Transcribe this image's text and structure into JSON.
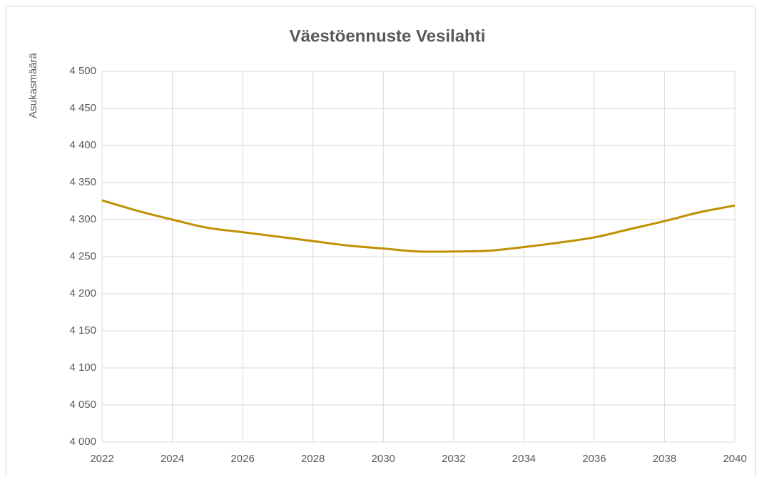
{
  "chart_data": {
    "type": "line",
    "title": "Väestöennuste Vesilahti",
    "y_label": "Asukasmäärä",
    "x": [
      2022,
      2023,
      2024,
      2025,
      2026,
      2027,
      2028,
      2029,
      2030,
      2031,
      2032,
      2033,
      2034,
      2035,
      2036,
      2037,
      2038,
      2039,
      2040
    ],
    "series": [
      {
        "name": "Vesilahti",
        "color": "#bf9000",
        "values": [
          4326,
          4312,
          4300,
          4289,
          4283,
          4277,
          4271,
          4265,
          4261,
          4257,
          4257,
          4258,
          4263,
          4269,
          4276,
          4287,
          4298,
          4310,
          4319
        ]
      }
    ],
    "xlim": [
      2022,
      2040
    ],
    "xticks": [
      2022,
      2024,
      2026,
      2028,
      2030,
      2032,
      2034,
      2036,
      2038,
      2040
    ],
    "ylim": [
      4000,
      4500
    ],
    "yticks": [
      {
        "value": 4000,
        "label": "4 000"
      },
      {
        "value": 4050,
        "label": "4 050"
      },
      {
        "value": 4100,
        "label": "4 100"
      },
      {
        "value": 4150,
        "label": "4 150"
      },
      {
        "value": 4200,
        "label": "4 200"
      },
      {
        "value": 4250,
        "label": "4 250"
      },
      {
        "value": 4300,
        "label": "4 300"
      },
      {
        "value": 4350,
        "label": "4 350"
      },
      {
        "value": 4400,
        "label": "4 400"
      },
      {
        "value": 4450,
        "label": "4 450"
      },
      {
        "value": 4500,
        "label": "4 500"
      }
    ],
    "grid": true,
    "smooth": true
  }
}
